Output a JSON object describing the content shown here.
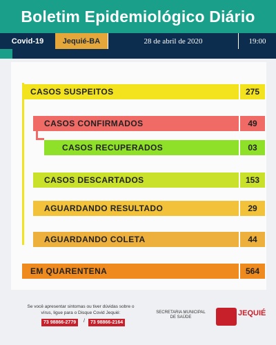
{
  "header": {
    "title": "Boletim Epidemiológico Diário"
  },
  "infobar": {
    "label1": "Covid-19",
    "city": "Jequié-BA",
    "date": "28 de abril de 2020",
    "time": "19:00"
  },
  "rows": {
    "suspeitos": {
      "label": "CASOS SUSPEITOS",
      "value": "275"
    },
    "confirmados": {
      "label": "CASOS CONFIRMADOS",
      "value": "49"
    },
    "recuperados": {
      "label": "CASOS RECUPERADOS",
      "value": "03"
    },
    "descartados": {
      "label": "CASOS DESCARTADOS",
      "value": "153"
    },
    "aguardando_resultado": {
      "label": "AGUARDANDO RESULTADO",
      "value": "29"
    },
    "aguardando_coleta": {
      "label": "AGUARDANDO COLETA",
      "value": "44"
    },
    "quarentena": {
      "label": "EM QUARENTENA",
      "value": "564"
    }
  },
  "footer": {
    "text": "Se você apresentar sintomas ou tiver dúvidas sobre o vírus, ligue para o Disque Covid Jequié:",
    "phone1": "73 98866-2779",
    "phone2": "73 98866-2164",
    "separator": "/",
    "secretaria": "SECRETARIA MUNICIPAL DE SAÚDE",
    "logo_text": "JEQUIÉ"
  },
  "colors": {
    "header": "#1aa08a",
    "navy": "#0c2d4d",
    "yellow": "#f3e21e",
    "red": "#f06a66",
    "green": "#8fe028",
    "orange_light": "#f1c23a",
    "orange": "#ef8a1e"
  }
}
